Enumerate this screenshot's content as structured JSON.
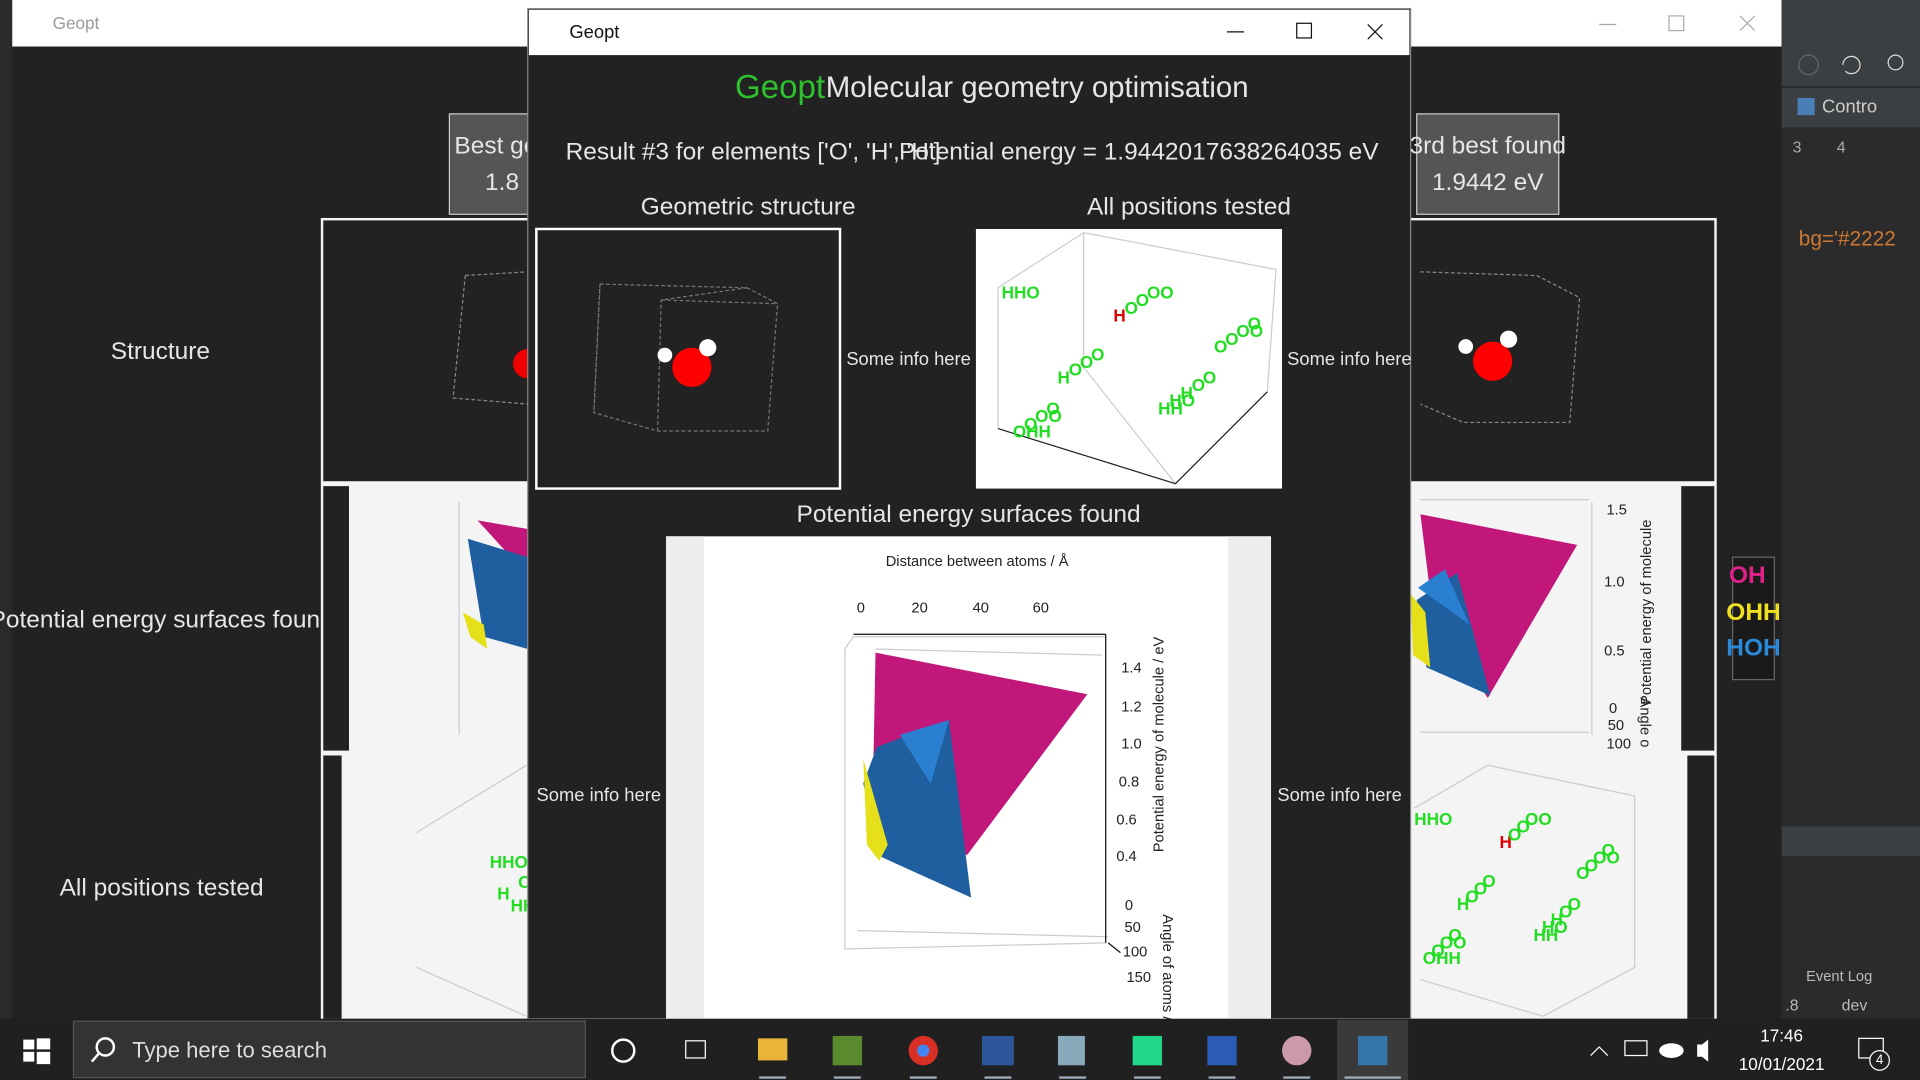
{
  "desktop_window": {
    "title": "Geopt",
    "best_box": [
      "Best ge",
      "1.8"
    ],
    "third_box": [
      "3rd best found",
      "1.9442 eV"
    ],
    "row_labels": [
      "Structure",
      "Potential energy surfaces found",
      "All positions tested"
    ],
    "legend": [
      "OH",
      "OHH",
      "HOH"
    ],
    "pes_plot": {
      "yticks": [
        "1.5",
        "1.0",
        "0.5"
      ],
      "zticks": [
        "0",
        "50",
        "100"
      ],
      "ylabel": "Potential energy of molecule",
      "zlabel": "Angle o"
    }
  },
  "front_window": {
    "title": "Geopt",
    "app_name": "Geopt",
    "heading": "Molecular geometry optimisation",
    "result": "Result #3 for elements ['O', 'H', 'H']",
    "energy": "Potential energy = 1.9442017638264035 eV",
    "structure_label": "Geometric structure",
    "positions_label": "All positions tested",
    "info": [
      "Some info here",
      "Some info here",
      "Some info here",
      "Some info here"
    ],
    "pes_label": "Potential energy surfaces found",
    "pes_plot": {
      "title": "Distance between atoms / Å",
      "xticks": [
        "0",
        "20",
        "40",
        "60"
      ],
      "yticks": [
        "1.4",
        "1.2",
        "1.0",
        "0.8",
        "0.6",
        "0.4"
      ],
      "zticks": [
        "0",
        "50",
        "100",
        "150"
      ],
      "ylabel": "Potential energy of molecule / eV",
      "zlabel": "Angle of atoms /"
    }
  },
  "scatter_labels": [
    "HHO",
    "HH",
    "H",
    "O",
    "H",
    "OHH",
    "HO",
    "O",
    "O",
    "O",
    "O",
    "H",
    "O",
    "OO",
    "O",
    "OO",
    "O",
    "O",
    "O",
    "OO",
    "O",
    "O"
  ],
  "ide": {
    "menu": "Contro",
    "warnings": "3",
    "checks": "4",
    "code": "bg='#2222",
    "event_log": "Event Log",
    "line": ".8",
    "branch": "dev"
  },
  "taskbar": {
    "search": "Type here to search",
    "time": "17:46",
    "date": "10/01/2021",
    "notifications": "4"
  }
}
